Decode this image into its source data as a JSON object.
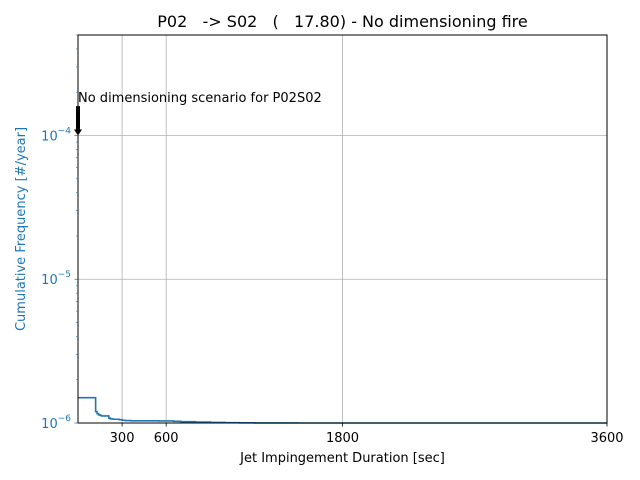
{
  "chart_data": {
    "type": "line",
    "title": "P02   -> S02   (   17.80) - No dimensioning fire",
    "xlabel": "Jet Impingement Duration [sec]",
    "ylabel": "Cumulative Frequency [#/year]",
    "xlim": [
      0,
      3600
    ],
    "ylim": [
      1e-06,
      0.0005
    ],
    "yscale": "log",
    "grid": true,
    "x_ticks": [
      300,
      600,
      1800,
      3600
    ],
    "x_tick_labels": [
      "300",
      "600",
      "1800",
      "3600"
    ],
    "y_ticks": [
      1e-06,
      1e-05,
      0.0001
    ],
    "y_tick_labels": [
      {
        "base": "10",
        "exp": "−6"
      },
      {
        "base": "10",
        "exp": "−5"
      },
      {
        "base": "10",
        "exp": "−4"
      }
    ],
    "series": [
      {
        "color": "#1f77b4",
        "step": true,
        "x": [
          0,
          120,
          120,
          130,
          140,
          150,
          160,
          200,
          210,
          220,
          230,
          240,
          280,
          300,
          320,
          360,
          400,
          450,
          500,
          550,
          600,
          650,
          700,
          800,
          900,
          1000,
          1100,
          1200,
          1500,
          1800,
          2100,
          2400,
          2700,
          3000,
          3300,
          3600
        ],
        "y": [
          1.5e-06,
          1.5e-06,
          1.2e-06,
          1.16e-06,
          1.14e-06,
          1.13e-06,
          1.12e-06,
          1.12e-06,
          1.08e-06,
          1.07e-06,
          1.066e-06,
          1.062e-06,
          1.055e-06,
          1.045e-06,
          1.04e-06,
          1.035e-06,
          1.035e-06,
          1.035e-06,
          1.035e-06,
          1.034e-06,
          1.033e-06,
          1.028e-06,
          1.022e-06,
          1.016e-06,
          1.01e-06,
          1.006e-06,
          1.003e-06,
          1.001e-06,
          1e-06,
          1e-06,
          1e-06,
          1e-06,
          1e-06,
          1e-06,
          1e-06,
          1e-06
        ]
      }
    ],
    "annotation": {
      "text": "No dimensioning scenario for P02S02",
      "arrow_x": 0,
      "arrow_y_start": 0.000155,
      "arrow_y_end": 0.0001
    },
    "axis_color": "#1f77b4"
  }
}
